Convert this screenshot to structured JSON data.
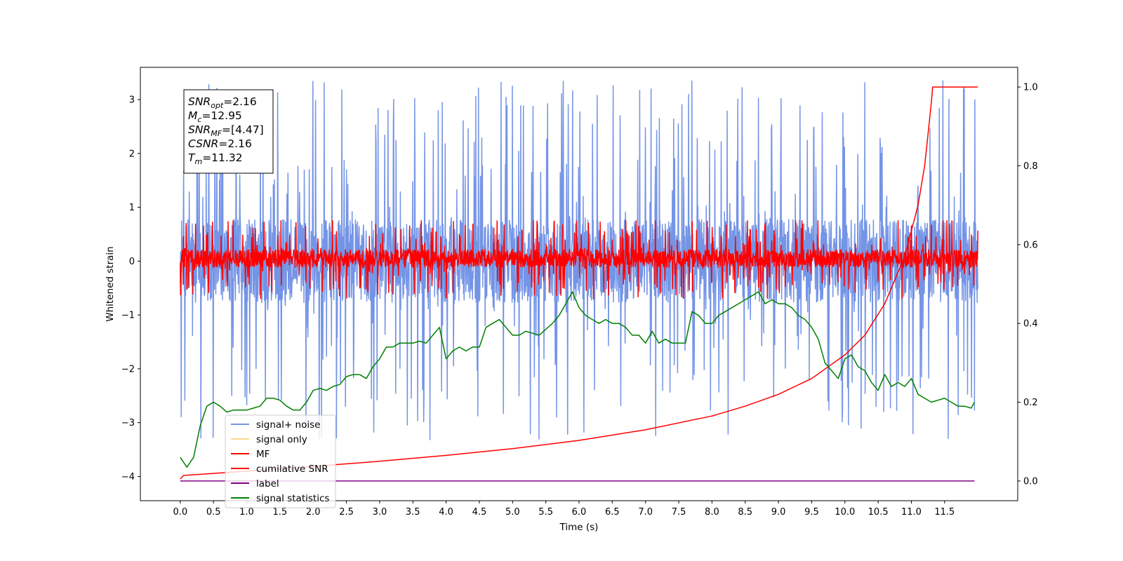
{
  "chart_data": {
    "type": "line",
    "xlabel": "Time (s)",
    "ylabel": "Whitened strain",
    "xlim": [
      -0.6,
      12.6
    ],
    "ylim": [
      -4.45,
      3.6
    ],
    "y2lim": [
      -0.05,
      1.05
    ],
    "x_ticks": [
      0.0,
      0.5,
      1.0,
      1.5,
      2.0,
      2.5,
      3.0,
      3.5,
      4.0,
      4.5,
      5.0,
      5.5,
      6.0,
      6.5,
      7.0,
      7.5,
      8.0,
      8.5,
      9.0,
      9.5,
      10.0,
      10.5,
      11.0,
      11.5
    ],
    "x_tick_labels": [
      "0.0",
      "0.5",
      "1.0",
      "1.5",
      "2.0",
      "2.5",
      "3.0",
      "3.5",
      "4.0",
      "4.5",
      "5.0",
      "5.5",
      "6.0",
      "6.5",
      "7.0",
      "7.5",
      "8.0",
      "8.5",
      "9.0",
      "9.5",
      "10.0",
      "10.5",
      "11.0",
      "11.5"
    ],
    "y_ticks": [
      -4,
      -3,
      -2,
      -1,
      0,
      1,
      2,
      3
    ],
    "y_tick_labels": [
      "−4",
      "−3",
      "−2",
      "−1",
      "0",
      "1",
      "2",
      "3"
    ],
    "y2_ticks": [
      0.0,
      0.2,
      0.4,
      0.6,
      0.8,
      1.0
    ],
    "y2_tick_labels": [
      "0.0",
      "0.2",
      "0.4",
      "0.6",
      "0.8",
      "1.0"
    ],
    "info_box": [
      {
        "base": "SNR",
        "sub": "opt",
        "value": "=2.16"
      },
      {
        "base": "M",
        "sub": "c",
        "value": "=12.95"
      },
      {
        "base": "SNR",
        "sub": "MF",
        "value": "=[4.47]"
      },
      {
        "base": "CSNR",
        "sub": "",
        "value": "=2.16"
      },
      {
        "base": "T",
        "sub": "m",
        "value": "=11.32"
      }
    ],
    "legend": {
      "position": "lower-left",
      "entries": [
        {
          "label": "signal+ noise",
          "color": "#7494e6"
        },
        {
          "label": "signal only",
          "color": "#fbd98a"
        },
        {
          "label": "MF",
          "color": "#ff0000"
        },
        {
          "label": "cumilative SNR",
          "color": "#ff0000"
        },
        {
          "label": "label",
          "color": "#800080"
        },
        {
          "label": "signal statistics",
          "color": "#008000"
        }
      ]
    },
    "series": [
      {
        "name": "signal+ noise",
        "axis": "left",
        "color": "#7494e6",
        "noise": {
          "t_start": 0.0,
          "t_end": 12.0,
          "samples": 2400,
          "center": 0.0,
          "envelope": 1.4,
          "max_abs": 3.35,
          "seed": 7
        }
      },
      {
        "name": "MF",
        "axis": "left",
        "color": "#ff0000",
        "noise": {
          "t_start": 0.0,
          "t_end": 12.0,
          "samples": 2400,
          "center": 0.05,
          "envelope": 0.3,
          "max_abs": 0.75,
          "seed": 13
        }
      },
      {
        "name": "cumilative SNR",
        "axis": "right",
        "color": "#ff0000",
        "x": [
          0.0,
          0.05,
          1.0,
          2.0,
          3.0,
          4.0,
          5.0,
          6.0,
          7.0,
          8.0,
          8.5,
          9.0,
          9.5,
          10.0,
          10.3,
          10.6,
          10.9,
          11.1,
          11.2,
          11.25,
          11.3,
          11.32,
          12.0
        ],
        "values": [
          0.005,
          0.014,
          0.025,
          0.037,
          0.05,
          0.065,
          0.082,
          0.103,
          0.13,
          0.165,
          0.19,
          0.22,
          0.26,
          0.32,
          0.37,
          0.45,
          0.57,
          0.7,
          0.8,
          0.88,
          0.96,
          1.0,
          1.0
        ]
      },
      {
        "name": "label",
        "axis": "right",
        "color": "#800080",
        "x": [
          0.0,
          11.95
        ],
        "values": [
          0.0,
          0.0
        ]
      },
      {
        "name": "signal statistics",
        "axis": "right",
        "color": "#008000",
        "x": [
          0.0,
          0.1,
          0.2,
          0.3,
          0.4,
          0.5,
          0.6,
          0.7,
          0.8,
          0.9,
          1.0,
          1.1,
          1.2,
          1.3,
          1.4,
          1.5,
          1.6,
          1.7,
          1.8,
          1.9,
          2.0,
          2.1,
          2.2,
          2.3,
          2.4,
          2.5,
          2.6,
          2.7,
          2.8,
          2.9,
          3.0,
          3.1,
          3.2,
          3.3,
          3.4,
          3.5,
          3.6,
          3.7,
          3.8,
          3.9,
          4.0,
          4.1,
          4.2,
          4.3,
          4.4,
          4.5,
          4.6,
          4.7,
          4.8,
          4.9,
          5.0,
          5.1,
          5.2,
          5.3,
          5.4,
          5.5,
          5.6,
          5.7,
          5.8,
          5.9,
          6.0,
          6.1,
          6.2,
          6.3,
          6.4,
          6.5,
          6.6,
          6.7,
          6.8,
          6.9,
          7.0,
          7.1,
          7.2,
          7.3,
          7.4,
          7.5,
          7.6,
          7.7,
          7.8,
          7.9,
          8.0,
          8.1,
          8.2,
          8.3,
          8.4,
          8.5,
          8.6,
          8.7,
          8.8,
          8.9,
          9.0,
          9.1,
          9.2,
          9.3,
          9.4,
          9.5,
          9.6,
          9.7,
          9.8,
          9.9,
          10.0,
          10.1,
          10.2,
          10.3,
          10.4,
          10.5,
          10.6,
          10.7,
          10.8,
          10.9,
          11.0,
          11.1,
          11.2,
          11.3,
          11.4,
          11.5,
          11.6,
          11.7,
          11.8,
          11.9,
          11.95
        ],
        "values": [
          0.06,
          0.035,
          0.06,
          0.14,
          0.19,
          0.2,
          0.19,
          0.175,
          0.18,
          0.18,
          0.18,
          0.185,
          0.19,
          0.21,
          0.21,
          0.205,
          0.19,
          0.18,
          0.18,
          0.2,
          0.23,
          0.235,
          0.23,
          0.24,
          0.245,
          0.265,
          0.27,
          0.27,
          0.26,
          0.29,
          0.31,
          0.34,
          0.34,
          0.35,
          0.35,
          0.35,
          0.355,
          0.35,
          0.37,
          0.39,
          0.31,
          0.33,
          0.34,
          0.33,
          0.34,
          0.34,
          0.39,
          0.4,
          0.41,
          0.39,
          0.37,
          0.37,
          0.38,
          0.375,
          0.37,
          0.385,
          0.4,
          0.42,
          0.45,
          0.48,
          0.44,
          0.42,
          0.41,
          0.4,
          0.41,
          0.4,
          0.4,
          0.39,
          0.37,
          0.37,
          0.35,
          0.38,
          0.35,
          0.36,
          0.35,
          0.35,
          0.35,
          0.43,
          0.42,
          0.4,
          0.4,
          0.42,
          0.43,
          0.44,
          0.45,
          0.46,
          0.47,
          0.48,
          0.45,
          0.46,
          0.45,
          0.45,
          0.44,
          0.42,
          0.41,
          0.39,
          0.36,
          0.3,
          0.28,
          0.26,
          0.31,
          0.32,
          0.29,
          0.28,
          0.25,
          0.23,
          0.27,
          0.24,
          0.25,
          0.24,
          0.26,
          0.22,
          0.21,
          0.2,
          0.205,
          0.21,
          0.2,
          0.19,
          0.19,
          0.185,
          0.2
        ]
      }
    ]
  }
}
